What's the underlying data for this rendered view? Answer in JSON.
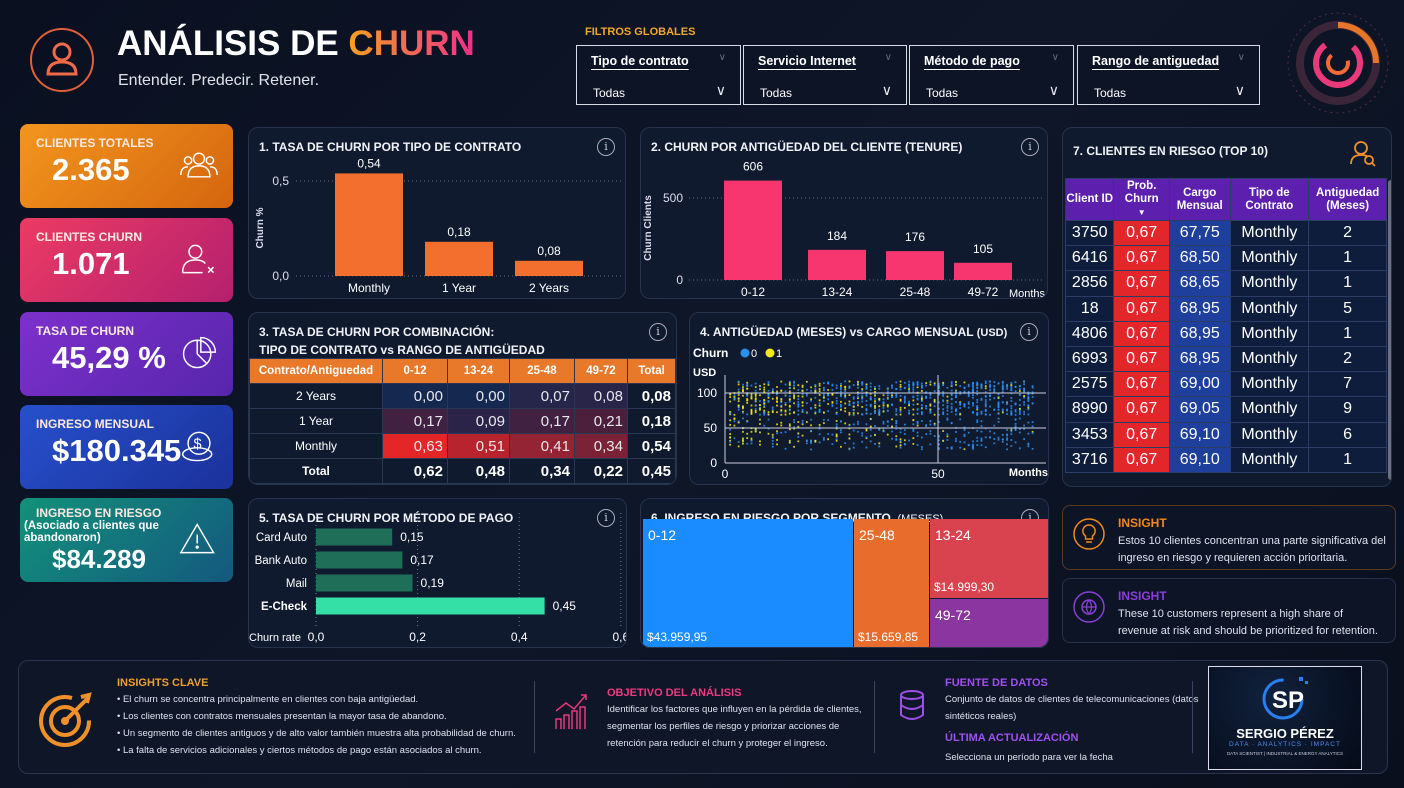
{
  "header": {
    "title_main": "ANÁLISIS DE ",
    "title_accent": "CHURN",
    "subtitle": "Entender. Predecir. Retener."
  },
  "filters": {
    "label": "FILTROS GLOBALES",
    "items": [
      {
        "label": "Tipo de contrato",
        "value": "Todas"
      },
      {
        "label": "Servicio Internet",
        "value": "Todas"
      },
      {
        "label": "Método de pago",
        "value": "Todas"
      },
      {
        "label": "Rango de antiguedad",
        "value": "Todas"
      }
    ]
  },
  "kpis": [
    {
      "label": "CLIENTES TOTALES",
      "value": "2.365",
      "icon": "users-icon",
      "color": "#ec8a1c"
    },
    {
      "label": "CLIENTES CHURN",
      "value": "1.071",
      "icon": "user-x-icon",
      "color": "#e0356e"
    },
    {
      "label": "TASA DE CHURN",
      "value": "45,29 %",
      "icon": "pie-chart-icon",
      "color": "#7430c6"
    },
    {
      "label": "INGRESO MENSUAL",
      "value": "$180.345",
      "icon": "coins-dollar-icon",
      "color": "#2344be"
    },
    {
      "label": "INGRESO EN RIESGO",
      "sublabel": "(Asociado a clientes que abandonaron)",
      "value": "$84.289",
      "icon": "warning-icon",
      "color": "#138a7a"
    }
  ],
  "chart_data": [
    {
      "type": "bar",
      "title": "1. TASA DE CHURN POR TIPO DE CONTRATO",
      "ylabel": "Churn %",
      "xlabel": "",
      "categories": [
        "Monthly",
        "1 Year",
        "2 Years"
      ],
      "values": [
        0.54,
        0.18,
        0.08
      ],
      "labels": [
        "0,54",
        "0,18",
        "0,08"
      ],
      "yticks": [
        "0,0",
        "0,5"
      ],
      "ylim": [
        0,
        0.6
      ],
      "grid": true,
      "color": "#f26f2e"
    },
    {
      "type": "bar",
      "title": "2. CHURN POR ANTIGÜEDAD DEL CLIENTE (TENURE)",
      "ylabel": "Churn Clients",
      "xlabel": "Months",
      "categories": [
        "0-12",
        "13-24",
        "25-48",
        "49-72"
      ],
      "values": [
        606,
        184,
        176,
        105
      ],
      "labels": [
        "606",
        "184",
        "176",
        "105"
      ],
      "yticks": [
        "0",
        "500"
      ],
      "ylim": [
        0,
        700
      ],
      "grid": true,
      "color": "#f7366f"
    },
    {
      "type": "heatmap",
      "title_line1": "3. TASA DE CHURN POR COMBINACIÓN:",
      "title_line2": "TIPO DE CONTRATO vs RANGO DE ANTIGÜEDAD",
      "columns": [
        "Contrato/Antiguedad",
        "0-12",
        "13-24",
        "25-48",
        "49-72",
        "Total"
      ],
      "rows": [
        {
          "label": "2 Years",
          "values": [
            "0,00",
            "0,00",
            "0,07",
            "0,08"
          ],
          "nums": [
            0.0,
            0.0,
            0.07,
            0.08
          ],
          "total": "0,08"
        },
        {
          "label": "1 Year",
          "values": [
            "0,17",
            "0,09",
            "0,17",
            "0,21"
          ],
          "nums": [
            0.17,
            0.09,
            0.17,
            0.21
          ],
          "total": "0,18"
        },
        {
          "label": "Monthly",
          "values": [
            "0,63",
            "0,51",
            "0,41",
            "0,34"
          ],
          "nums": [
            0.63,
            0.51,
            0.41,
            0.34
          ],
          "total": "0,54"
        }
      ],
      "total_row": {
        "label": "Total",
        "values": [
          "0,62",
          "0,48",
          "0,34",
          "0,22"
        ],
        "total": "0,45"
      }
    },
    {
      "type": "scatter",
      "title": "4. ANTIGÜEDAD (MESES) vs CARGO MENSUAL",
      "title_unit": "(USD)",
      "legend_title": "Churn",
      "legend": [
        {
          "name": "0",
          "color": "#2b8ff0"
        },
        {
          "name": "1",
          "color": "#f4e81c"
        }
      ],
      "ylabel": "USD",
      "xlabel": "Months",
      "xticks": [
        "0",
        "50"
      ],
      "yticks": [
        "0",
        "50",
        "100"
      ],
      "xlim": [
        0,
        72
      ],
      "ylim": [
        0,
        120
      ],
      "grid": true
    },
    {
      "type": "bar",
      "orientation": "horizontal",
      "title": "5. TASA DE CHURN POR MÉTODO DE PAGO",
      "xlabel": "Churn rate",
      "categories": [
        "Card Auto",
        "Bank Auto",
        "Mail",
        "E-Check"
      ],
      "values": [
        0.15,
        0.17,
        0.19,
        0.45
      ],
      "labels": [
        "0,15",
        "0,17",
        "0,19",
        "0,45"
      ],
      "xticks": [
        "0,0",
        "0,2",
        "0,4",
        "0,6"
      ],
      "xlim": [
        0,
        0.6
      ],
      "colors": [
        "#1f6e58",
        "#1f6e58",
        "#1f6e58",
        "#35e0a6"
      ]
    },
    {
      "type": "treemap",
      "title": "6. INGRESO EN RIESGO POR SEGMENTO",
      "title_unit": "(MESES)",
      "segments": [
        {
          "name": "0-12",
          "label": "$43.959,95",
          "value": 43959.95,
          "color": "#1a8cff"
        },
        {
          "name": "25-48",
          "label": "$15.659,85",
          "value": 15659.85,
          "color": "#e86c2c"
        },
        {
          "name": "13-24",
          "label": "$14.999,30",
          "value": 14999.3,
          "color": "#d8434f"
        },
        {
          "name": "49-72",
          "color": "#8a35a0"
        }
      ]
    }
  ],
  "top10": {
    "title": "7. CLIENTES EN RIESGO (TOP 10)",
    "columns": [
      "Client ID",
      "Prob. Churn",
      "Cargo Mensual",
      "Tipo de Contrato",
      "Antiguedad (Meses)"
    ],
    "rows": [
      [
        "3750",
        "0,67",
        "67,75",
        "Monthly",
        "2"
      ],
      [
        "6416",
        "0,67",
        "68,50",
        "Monthly",
        "1"
      ],
      [
        "2856",
        "0,67",
        "68,65",
        "Monthly",
        "1"
      ],
      [
        "18",
        "0,67",
        "68,95",
        "Monthly",
        "5"
      ],
      [
        "4806",
        "0,67",
        "68,95",
        "Monthly",
        "1"
      ],
      [
        "6993",
        "0,67",
        "68,95",
        "Monthly",
        "2"
      ],
      [
        "2575",
        "0,67",
        "69,00",
        "Monthly",
        "7"
      ],
      [
        "8990",
        "0,67",
        "69,05",
        "Monthly",
        "9"
      ],
      [
        "3453",
        "0,67",
        "69,10",
        "Monthly",
        "6"
      ],
      [
        "3716",
        "0,67",
        "69,10",
        "Monthly",
        "1"
      ]
    ]
  },
  "insights": [
    {
      "title": "INSIGHT",
      "text": "Estos 10 clientes concentran una parte significativa del ingreso en riesgo y requieren acción prioritaria.",
      "color": "#f08a1c"
    },
    {
      "title": "INSIGHT",
      "text": "These 10 customers represent a high share of revenue at risk and should be prioritized for retention.",
      "color": "#8a3fd8"
    }
  ],
  "bottom": {
    "insights_title": "INSIGHTS CLAVE",
    "insights": [
      "• El churn se concentra principalmente en clientes con baja antigüedad.",
      "• Los clientes con contratos mensuales presentan la mayor tasa de abandono.",
      "• Un segmento de clientes antiguos y de alto valor también muestra alta probabilidad de churn.",
      "• La falta de servicios adicionales y ciertos métodos de pago están asociados al churn."
    ],
    "objective_title": "OBJETIVO DEL ANÁLISIS",
    "objective_text": "Identificar los factores que influyen en la pérdida de clientes, segmentar los perfiles de riesgo y priorizar acciones de retención para reducir el churn y proteger el ingreso.",
    "source_title": "FUENTE DE DATOS",
    "source_text": "Conjunto de datos de clientes de telecomunicaciones (datos sintéticos reales)",
    "update_title": "ÚLTIMA ACTUALIZACIÓN",
    "update_text": "Selecciona un período para ver la fecha",
    "logo": {
      "name": "SERGIO PÉREZ",
      "tagline": "DATA · ANALYTICS · IMPACT",
      "role": "DATA SCIENTIST | INDUSTRIAL & ENERGY ANALYTICS"
    }
  }
}
